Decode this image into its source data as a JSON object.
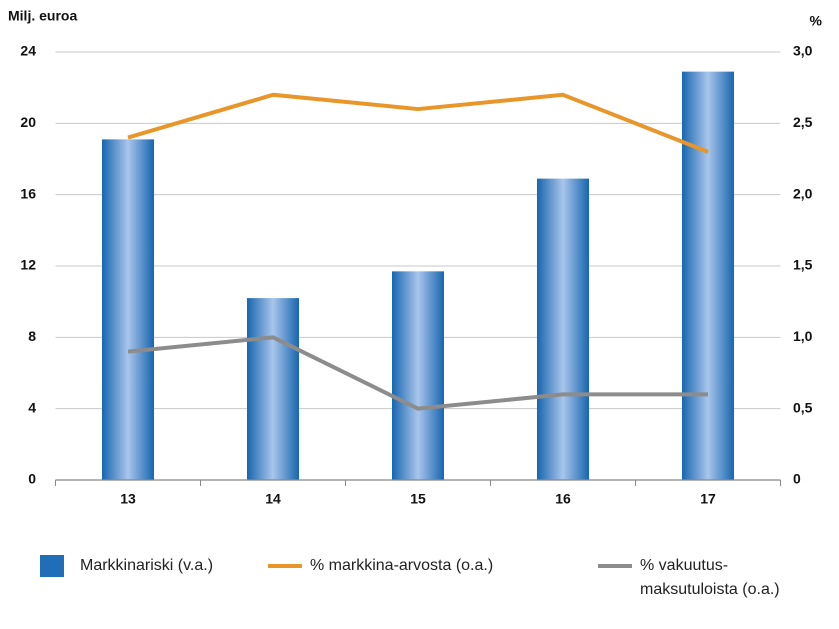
{
  "chart_data": {
    "type": "bar_line",
    "y_label": "Milj. euroa",
    "y2_label": "%",
    "categories": [
      "13",
      "14",
      "15",
      "16",
      "17"
    ],
    "series": [
      {
        "name": "Markkinariski (v.a.)",
        "type": "bar",
        "color": "#1f6fb8",
        "values": [
          19.1,
          10.2,
          11.7,
          16.9,
          22.9
        ]
      },
      {
        "name": "% markkina-arvosta (o.a.)",
        "type": "line",
        "axis": "y2",
        "color": "#e8952a",
        "values": [
          2.4,
          2.7,
          2.6,
          2.7,
          2.3
        ]
      },
      {
        "name": "% vakuutus-\nmaksutuloista (o.a.)",
        "type": "line",
        "axis": "y2",
        "color": "#8c8c8c",
        "values": [
          0.9,
          1.0,
          0.5,
          0.6,
          0.6
        ]
      }
    ],
    "ylim": [
      0,
      24
    ],
    "yticks": [
      0,
      4,
      8,
      12,
      16,
      20,
      24
    ],
    "y2lim": [
      0,
      3
    ],
    "y2ticks": [
      0,
      {
        "value": 0.5,
        "label": "0,5"
      },
      {
        "value": 1,
        "label": "1,0"
      },
      {
        "value": 1.5,
        "label": "1,5"
      },
      {
        "value": 2,
        "label": "2,0"
      },
      {
        "value": 2.5,
        "label": "2,5"
      },
      {
        "value": 3,
        "label": "3,0"
      }
    ],
    "grid": true
  }
}
